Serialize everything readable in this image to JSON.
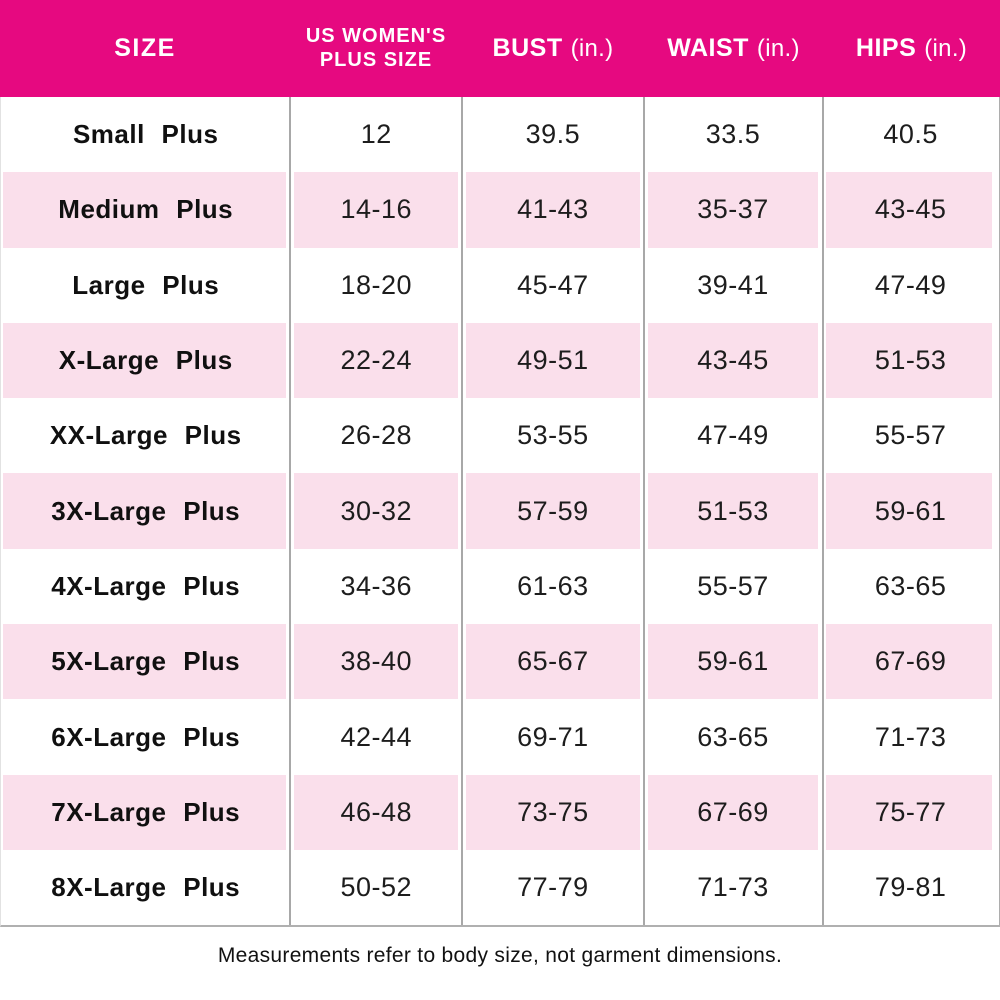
{
  "colors": {
    "header_bg": "#E60980",
    "header_text": "#FFFFFF",
    "row_pink": "#FADFEB",
    "row_white": "#FFFFFF",
    "grid_line": "#A8A8A8",
    "body_text": "#1D1D1D"
  },
  "chart_data": {
    "type": "table",
    "header": {
      "size": "SIZE",
      "us_plus_size_line1": "US WOMEN'S",
      "us_plus_size_line2": "PLUS SIZE",
      "bust_word": "BUST",
      "bust_unit": "(in.)",
      "waist_word": "WAIST",
      "waist_unit": "(in.)",
      "hips_word": "HIPS",
      "hips_unit": "(in.)"
    },
    "columns": [
      "SIZE",
      "US WOMEN'S PLUS SIZE",
      "BUST (in.)",
      "WAIST (in.)",
      "HIPS (in.)"
    ],
    "rows": [
      {
        "size": "Small Plus",
        "us_plus_size": "12",
        "bust": "39.5",
        "waist": "33.5",
        "hips": "40.5"
      },
      {
        "size": "Medium Plus",
        "us_plus_size": "14-16",
        "bust": "41-43",
        "waist": "35-37",
        "hips": "43-45"
      },
      {
        "size": "Large Plus",
        "us_plus_size": "18-20",
        "bust": "45-47",
        "waist": "39-41",
        "hips": "47-49"
      },
      {
        "size": "X-Large Plus",
        "us_plus_size": "22-24",
        "bust": "49-51",
        "waist": "43-45",
        "hips": "51-53"
      },
      {
        "size": "XX-Large Plus",
        "us_plus_size": "26-28",
        "bust": "53-55",
        "waist": "47-49",
        "hips": "55-57"
      },
      {
        "size": "3X-Large Plus",
        "us_plus_size": "30-32",
        "bust": "57-59",
        "waist": "51-53",
        "hips": "59-61"
      },
      {
        "size": "4X-Large Plus",
        "us_plus_size": "34-36",
        "bust": "61-63",
        "waist": "55-57",
        "hips": "63-65"
      },
      {
        "size": "5X-Large Plus",
        "us_plus_size": "38-40",
        "bust": "65-67",
        "waist": "59-61",
        "hips": "67-69"
      },
      {
        "size": "6X-Large Plus",
        "us_plus_size": "42-44",
        "bust": "69-71",
        "waist": "63-65",
        "hips": "71-73"
      },
      {
        "size": "7X-Large Plus",
        "us_plus_size": "46-48",
        "bust": "73-75",
        "waist": "67-69",
        "hips": "75-77"
      },
      {
        "size": "8X-Large Plus",
        "us_plus_size": "50-52",
        "bust": "77-79",
        "waist": "71-73",
        "hips": "79-81"
      }
    ],
    "footnote": "Measurements refer to body size, not garment dimensions."
  }
}
